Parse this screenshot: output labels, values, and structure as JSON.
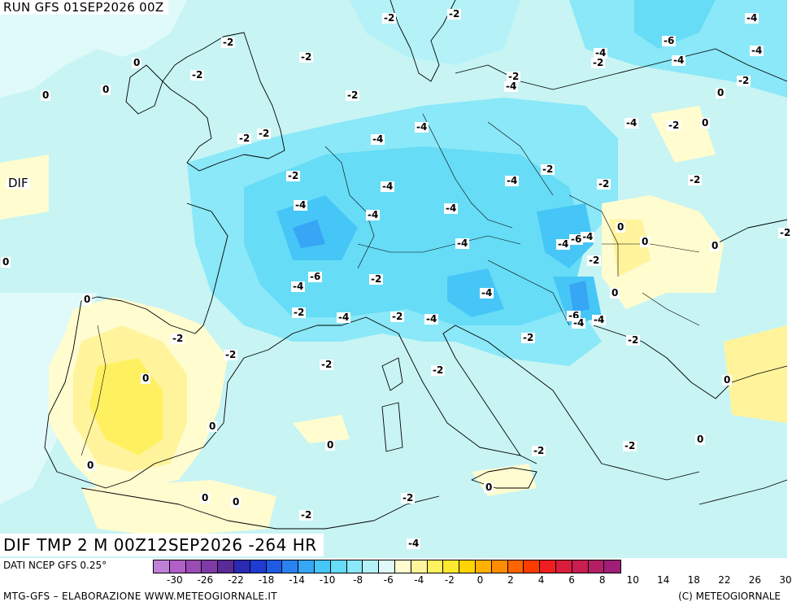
{
  "header": {
    "run": "RUN GFS 01SEP2026 00Z"
  },
  "map": {
    "field_label": "DIF TMP 2 M 00Z12SEP2026 -264 HR",
    "contour_labels": [
      {
        "text": "-2"
      },
      {
        "text": "-2"
      },
      {
        "text": "-4"
      },
      {
        "text": "-2"
      },
      {
        "text": "0"
      },
      {
        "text": "-2"
      },
      {
        "text": "-6"
      },
      {
        "text": "-4"
      },
      {
        "text": "-4"
      },
      {
        "text": "-2"
      },
      {
        "text": "-2"
      },
      {
        "text": "-4"
      },
      {
        "text": "0"
      },
      {
        "text": "-2"
      },
      {
        "text": "-2"
      },
      {
        "text": "-4"
      },
      {
        "text": "0"
      },
      {
        "text": "-2"
      },
      {
        "text": "-2"
      },
      {
        "text": "-2"
      },
      {
        "text": "-4"
      },
      {
        "text": "-2"
      },
      {
        "text": "0"
      },
      {
        "text": "-4"
      },
      {
        "text": "-4"
      },
      {
        "text": "-2"
      },
      {
        "text": "DIF"
      },
      {
        "text": "-2"
      },
      {
        "text": "-4"
      },
      {
        "text": "-4"
      },
      {
        "text": "-2"
      },
      {
        "text": "-2"
      },
      {
        "text": "-4"
      },
      {
        "text": "-4"
      },
      {
        "text": "-4"
      },
      {
        "text": "0"
      },
      {
        "text": "0"
      },
      {
        "text": "-4"
      },
      {
        "text": "-4"
      },
      {
        "text": "-6"
      },
      {
        "text": "-4"
      },
      {
        "text": "0"
      },
      {
        "text": "-2"
      },
      {
        "text": "0"
      },
      {
        "text": "-6"
      },
      {
        "text": "-4"
      },
      {
        "text": "-2"
      },
      {
        "text": "0"
      },
      {
        "text": "-4"
      },
      {
        "text": "-2"
      },
      {
        "text": "-2"
      },
      {
        "text": "-4"
      },
      {
        "text": "-4"
      },
      {
        "text": "-6"
      },
      {
        "text": "-4"
      },
      {
        "text": "-4"
      },
      {
        "text": "-2"
      },
      {
        "text": "-2"
      },
      {
        "text": "-2"
      },
      {
        "text": "-2"
      },
      {
        "text": "-2"
      },
      {
        "text": "0"
      },
      {
        "text": "-2"
      },
      {
        "text": "0"
      },
      {
        "text": "0"
      },
      {
        "text": "-2"
      },
      {
        "text": "0"
      },
      {
        "text": "0"
      },
      {
        "text": "-2"
      },
      {
        "text": "0"
      },
      {
        "text": "-2"
      },
      {
        "text": "0"
      },
      {
        "text": "0"
      },
      {
        "text": "0"
      },
      {
        "text": "-2"
      },
      {
        "text": "-2"
      },
      {
        "text": "-4"
      },
      {
        "text": "0"
      },
      {
        "text": "0"
      }
    ]
  },
  "legend": {
    "source": "DATI NCEP GFS 0.25°",
    "colors": [
      "#c080d8",
      "#b060c8",
      "#9a4cb4",
      "#7e3aa6",
      "#5a2a98",
      "#2a2ab4",
      "#1e3cd2",
      "#1e5ae6",
      "#2a82f0",
      "#37a6f4",
      "#46c6f6",
      "#66dcf6",
      "#8ae8f8",
      "#b4f2f8",
      "#e0fafa",
      "#fffcd0",
      "#fff49c",
      "#fff060",
      "#ffe830",
      "#ffd400",
      "#ffb000",
      "#ff8c00",
      "#ff6400",
      "#ff3c00",
      "#f01e1e",
      "#d81e3c",
      "#c81e50",
      "#b41e64",
      "#a01e78"
    ],
    "ticks": [
      "-30",
      "-26",
      "-22",
      "-18",
      "-14",
      "-10",
      "-8",
      "-6",
      "-4",
      "-2",
      "0",
      "2",
      "4",
      "6",
      "8",
      "10",
      "14",
      "18",
      "22",
      "26",
      "30"
    ],
    "footer_left": "MTG-GFS – ELABORAZIONE WWW.METEOGIORNALE.IT",
    "footer_right": "(C) METEOGIORNALE"
  }
}
